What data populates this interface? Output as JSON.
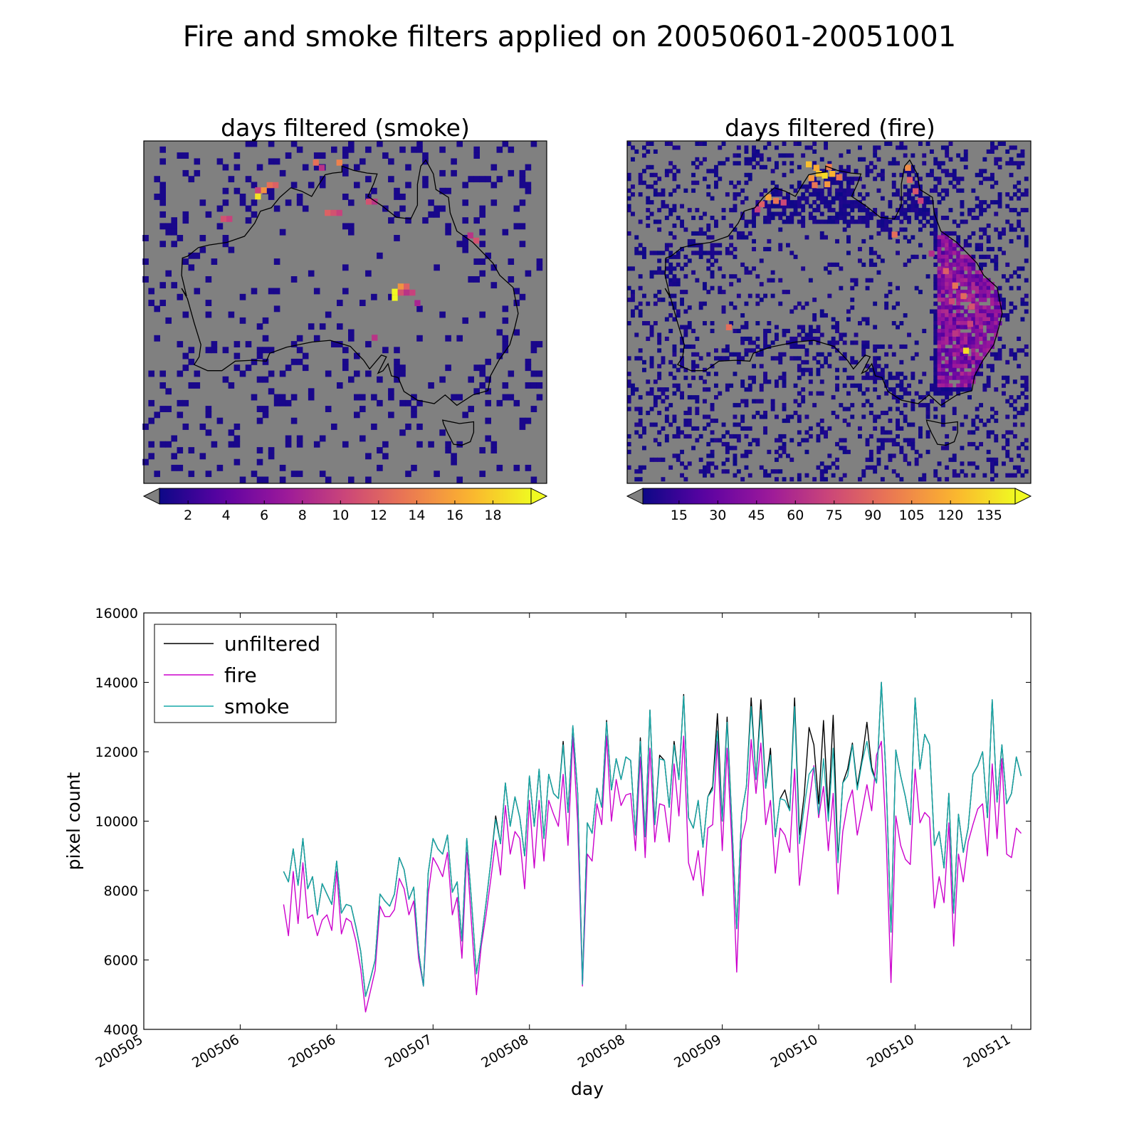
{
  "title": "Fire and smoke filters applied on 20050601-20051001",
  "colors": {
    "background": "#ffffff",
    "land_gray": "#808080",
    "coast": "#000000",
    "unfiltered": "#000000",
    "fire": "#cc00cc",
    "smoke": "#16a8a8",
    "colormap": [
      "#0d0887",
      "#5b02a3",
      "#9a179b",
      "#cb4679",
      "#eb7852",
      "#fbb32f",
      "#f0f921"
    ]
  },
  "chart_data": [
    {
      "type": "heatmap",
      "title": "days filtered (smoke)",
      "colorbar": {
        "ticks": [
          "2",
          "4",
          "6",
          "8",
          "10",
          "12",
          "14",
          "16",
          "18"
        ],
        "range": [
          0.5,
          20
        ]
      },
      "hotspots": [
        {
          "lon": 138.9,
          "lat": -25.9,
          "value": 20
        },
        {
          "lon": 138.9,
          "lat": -26.6,
          "value": 20
        },
        {
          "lon": 139.6,
          "lat": -25.3,
          "value": 15
        },
        {
          "lon": 140.3,
          "lat": -25.3,
          "value": 12
        },
        {
          "lon": 139.6,
          "lat": -26.0,
          "value": 11
        },
        {
          "lon": 141.0,
          "lat": -26.0,
          "value": 10
        },
        {
          "lon": 140.3,
          "lat": -26.0,
          "value": 9
        },
        {
          "lon": 141.6,
          "lat": -27.2,
          "value": 8
        },
        {
          "lon": 122.6,
          "lat": -14.9,
          "value": 19
        },
        {
          "lon": 123.3,
          "lat": -14.2,
          "value": 15
        },
        {
          "lon": 124.0,
          "lat": -13.6,
          "value": 13
        },
        {
          "lon": 124.7,
          "lat": -13.6,
          "value": 12
        },
        {
          "lon": 122.6,
          "lat": -14.2,
          "value": 10
        },
        {
          "lon": 132.3,
          "lat": -11.0,
          "value": 14
        },
        {
          "lon": 129.5,
          "lat": -11.0,
          "value": 13
        },
        {
          "lon": 130.2,
          "lat": -11.6,
          "value": 9
        },
        {
          "lon": 135.8,
          "lat": -15.5,
          "value": 11
        },
        {
          "lon": 136.5,
          "lat": -15.5,
          "value": 9
        },
        {
          "lon": 130.9,
          "lat": -16.8,
          "value": 12
        },
        {
          "lon": 131.6,
          "lat": -16.8,
          "value": 11
        },
        {
          "lon": 132.3,
          "lat": -16.8,
          "value": 10
        },
        {
          "lon": 118.5,
          "lat": -17.5,
          "value": 11
        },
        {
          "lon": 119.2,
          "lat": -17.5,
          "value": 10
        },
        {
          "lon": 148.6,
          "lat": -20.0,
          "value": 11
        },
        {
          "lon": 147.9,
          "lat": -19.4,
          "value": 9
        },
        {
          "lon": 136.5,
          "lat": -31.2,
          "value": 9
        }
      ]
    },
    {
      "type": "heatmap",
      "title": "days filtered (fire)",
      "colorbar": {
        "ticks": [
          "15",
          "30",
          "45",
          "60",
          "75",
          "90",
          "105",
          "120",
          "135"
        ],
        "range": [
          1,
          145
        ]
      },
      "hotspots": [
        {
          "lon": 132.5,
          "lat": -12.5,
          "value": 135
        },
        {
          "lon": 131.8,
          "lat": -12.3,
          "value": 128
        },
        {
          "lon": 133.4,
          "lat": -12.3,
          "value": 120
        },
        {
          "lon": 130.9,
          "lat": -12.8,
          "value": 110
        },
        {
          "lon": 134.2,
          "lat": -12.7,
          "value": 95
        },
        {
          "lon": 132.8,
          "lat": -13.5,
          "value": 110
        },
        {
          "lon": 131.3,
          "lat": -13.6,
          "value": 95
        },
        {
          "lon": 130.6,
          "lat": -11.2,
          "value": 125
        },
        {
          "lon": 131.5,
          "lat": -11.6,
          "value": 118
        },
        {
          "lon": 133.0,
          "lat": -11.5,
          "value": 100
        },
        {
          "lon": 125.8,
          "lat": -15.0,
          "value": 115
        },
        {
          "lon": 126.7,
          "lat": -15.4,
          "value": 95
        },
        {
          "lon": 125.0,
          "lat": -15.8,
          "value": 85
        },
        {
          "lon": 124.5,
          "lat": -16.4,
          "value": 70
        },
        {
          "lon": 127.6,
          "lat": -15.6,
          "value": 75
        },
        {
          "lon": 142.4,
          "lat": -11.6,
          "value": 105
        },
        {
          "lon": 142.6,
          "lat": -13.0,
          "value": 85
        },
        {
          "lon": 143.3,
          "lat": -14.3,
          "value": 80
        },
        {
          "lon": 143.9,
          "lat": -15.4,
          "value": 70
        },
        {
          "lon": 146.9,
          "lat": -23.5,
          "value": 85
        },
        {
          "lon": 148.0,
          "lat": -25.2,
          "value": 95
        },
        {
          "lon": 149.0,
          "lat": -26.4,
          "value": 90
        },
        {
          "lon": 150.0,
          "lat": -27.6,
          "value": 80
        },
        {
          "lon": 147.6,
          "lat": -27.0,
          "value": 75
        },
        {
          "lon": 149.8,
          "lat": -29.6,
          "value": 72
        },
        {
          "lon": 145.2,
          "lat": -21.5,
          "value": 60
        },
        {
          "lon": 148.0,
          "lat": -30.7,
          "value": 65
        },
        {
          "lon": 149.3,
          "lat": -32.7,
          "value": 135
        },
        {
          "lon": 140.8,
          "lat": -19.3,
          "value": 92
        },
        {
          "lon": 121.1,
          "lat": -30.0,
          "value": 92
        }
      ]
    },
    {
      "type": "line",
      "xlabel": "day",
      "ylabel": "pixel count",
      "ylim": [
        4000,
        16000
      ],
      "yticks": [
        "4000",
        "6000",
        "8000",
        "10000",
        "12000",
        "14000",
        "16000"
      ],
      "xlim": [
        "2005-05-01",
        "2005-11-01"
      ],
      "xticks": [
        "200505",
        "200506",
        "200506",
        "200507",
        "200508",
        "200508",
        "200509",
        "200510",
        "200510",
        "200511"
      ],
      "xticks_dates": [
        "2005-05-01",
        "2005-05-21",
        "2005-06-10",
        "2005-06-30",
        "2005-07-20",
        "2005-08-09",
        "2005-08-29",
        "2005-09-18",
        "2005-10-08",
        "2005-10-28"
      ],
      "x_start": "2005-05-30",
      "legend_position": "top-left",
      "series": [
        {
          "name": "unfiltered",
          "values": [
            8550,
            8250,
            9200,
            8150,
            9500,
            8050,
            8400,
            7300,
            8200,
            7900,
            7600,
            8850,
            7350,
            7600,
            7550,
            6950,
            6250,
            4950,
            5450,
            6000,
            7900,
            7700,
            7550,
            7900,
            8950,
            8600,
            7750,
            8100,
            6250,
            5250,
            8500,
            9500,
            9200,
            9050,
            9600,
            7950,
            8250,
            6550,
            9500,
            7650,
            5600,
            6550,
            7650,
            8850,
            10150,
            9350,
            11100,
            9850,
            10700,
            10100,
            9000,
            11300,
            9850,
            11500,
            9500,
            11350,
            10800,
            10650,
            12300,
            10250,
            12750,
            10800,
            5300,
            9950,
            9650,
            10950,
            10400,
            12900,
            10900,
            11800,
            11200,
            11850,
            11750,
            9600,
            12400,
            9550,
            13200,
            9900,
            11900,
            11750,
            10400,
            12300,
            11200,
            13650,
            10100,
            9800,
            10600,
            9250,
            10700,
            11000,
            13100,
            10000,
            13000,
            9900,
            6900,
            10200,
            11000,
            13550,
            11200,
            13500,
            10950,
            12100,
            9550,
            10650,
            10900,
            10300,
            13550,
            9600,
            10750,
            12700,
            12200,
            10500,
            12900,
            10200,
            13050,
            8900,
            11100,
            11500,
            12250,
            11000,
            11800,
            12850,
            11550,
            11100,
            14000,
            11200,
            6800,
            12050,
            11300,
            10700,
            9900,
            13550,
            11500,
            12500,
            12200,
            9300,
            9700,
            8650,
            10800,
            7350,
            10200,
            9100,
            9800,
            11350,
            11600,
            12000,
            10100,
            13500,
            10550,
            12200,
            10500,
            10800,
            11850,
            11300
          ]
        },
        {
          "name": "fire",
          "values": [
            7600,
            6700,
            8550,
            7050,
            8800,
            7200,
            7300,
            6700,
            7150,
            7300,
            6850,
            8550,
            6750,
            7200,
            7100,
            6550,
            5750,
            4500,
            5100,
            5700,
            7550,
            7250,
            7250,
            7450,
            8350,
            8050,
            7300,
            7700,
            6050,
            5250,
            7900,
            8950,
            8700,
            8400,
            9100,
            7300,
            7800,
            6050,
            9100,
            7000,
            5000,
            6400,
            7300,
            8350,
            9450,
            8450,
            10450,
            9050,
            9700,
            9500,
            8050,
            10600,
            8650,
            10600,
            8850,
            10600,
            10200,
            9850,
            11350,
            9300,
            12450,
            9950,
            5250,
            9050,
            8850,
            10500,
            9900,
            12450,
            10000,
            11200,
            10450,
            10750,
            10800,
            9150,
            11850,
            8950,
            12100,
            9400,
            10500,
            10450,
            9400,
            11650,
            10150,
            12450,
            8800,
            8300,
            9150,
            7850,
            9800,
            9900,
            12300,
            9150,
            12100,
            9300,
            5650,
            9450,
            10050,
            12350,
            10800,
            12250,
            9900,
            10600,
            8500,
            9800,
            9600,
            9100,
            11500,
            8150,
            9350,
            10500,
            11600,
            10100,
            11000,
            9150,
            10800,
            7900,
            9700,
            10500,
            10900,
            9600,
            10300,
            11050,
            10300,
            11900,
            12300,
            9550,
            5350,
            10150,
            9300,
            8900,
            8750,
            11500,
            9950,
            10250,
            10100,
            7500,
            8400,
            7650,
            9950,
            6400,
            9050,
            8250,
            9400,
            9900,
            10350,
            10500,
            9000,
            11650,
            9500,
            11800,
            9050,
            8950,
            9800,
            9650
          ]
        },
        {
          "name": "smoke",
          "values": [
            8550,
            8250,
            9200,
            8150,
            9500,
            8050,
            8400,
            7300,
            8200,
            7900,
            7600,
            8850,
            7350,
            7600,
            7550,
            6950,
            6250,
            4950,
            5450,
            6000,
            7900,
            7700,
            7550,
            7900,
            8950,
            8600,
            7750,
            8100,
            6250,
            5250,
            8500,
            9500,
            9200,
            9050,
            9600,
            7950,
            8250,
            6550,
            9500,
            7650,
            5600,
            6550,
            7650,
            8850,
            10050,
            9350,
            11100,
            9850,
            10700,
            10100,
            9000,
            11300,
            9850,
            11500,
            9500,
            11350,
            10800,
            10650,
            12200,
            10250,
            12750,
            10800,
            5300,
            9950,
            9650,
            10950,
            10400,
            12850,
            10900,
            11800,
            11200,
            11850,
            11750,
            9600,
            12300,
            9550,
            13200,
            9900,
            11800,
            11750,
            10400,
            12200,
            11200,
            13600,
            10100,
            9800,
            10600,
            9250,
            10700,
            10900,
            12600,
            10000,
            12850,
            9900,
            6900,
            10200,
            11000,
            13300,
            11200,
            13200,
            10950,
            11900,
            9550,
            10650,
            10600,
            10300,
            13300,
            9350,
            10400,
            11350,
            11550,
            10200,
            11800,
            10000,
            12100,
            8800,
            11100,
            11300,
            12200,
            10900,
            11700,
            12300,
            11450,
            11100,
            14000,
            11200,
            6800,
            12050,
            11300,
            10700,
            9900,
            13550,
            11500,
            12500,
            12200,
            9300,
            9700,
            8650,
            10800,
            7350,
            10200,
            9100,
            9800,
            11350,
            11600,
            12000,
            10100,
            13500,
            10550,
            12200,
            10500,
            10800,
            11850,
            11300
          ]
        }
      ]
    }
  ]
}
